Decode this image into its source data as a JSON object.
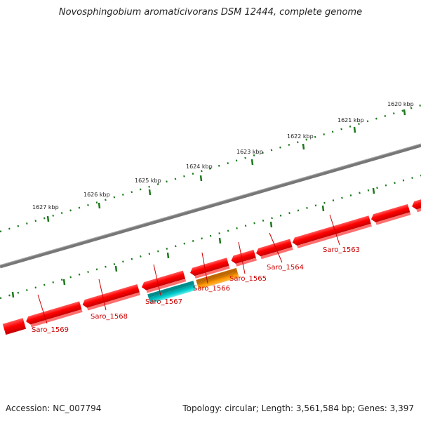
{
  "title": "Novosphingobium aromaticivorans DSM 12444, complete genome",
  "footer": {
    "accession": "Accession: NC_007794",
    "topology": "Topology: circular; Length: 3,561,584 bp; Genes: 3,397"
  },
  "scale_labels": [
    "1620 kbp",
    "1621 kbp",
    "1622 kbp",
    "1623 kbp",
    "1624 kbp",
    "1625 kbp",
    "1626 kbp",
    "1627 kbp"
  ],
  "genes": [
    {
      "label": "Saro_1563",
      "strand": "reverse",
      "color": "#ff0000"
    },
    {
      "label": "Saro_1564",
      "strand": "reverse",
      "color": "#ff0000"
    },
    {
      "label": "Saro_1565",
      "strand": "reverse",
      "color": "#ff0000"
    },
    {
      "label": "Saro_1566",
      "strand": "forward",
      "color": "#ff8c00"
    },
    {
      "label": "Saro_1567",
      "strand": "forward",
      "color": "#00cccc"
    },
    {
      "label": "Saro_1568",
      "strand": "reverse",
      "color": "#ff0000"
    },
    {
      "label": "Saro_1569",
      "strand": "reverse",
      "color": "#ff0000"
    }
  ],
  "colors": {
    "backbone": "#777777",
    "scale_ticks": "#1a7a1a",
    "label_line": "#cc0000"
  }
}
